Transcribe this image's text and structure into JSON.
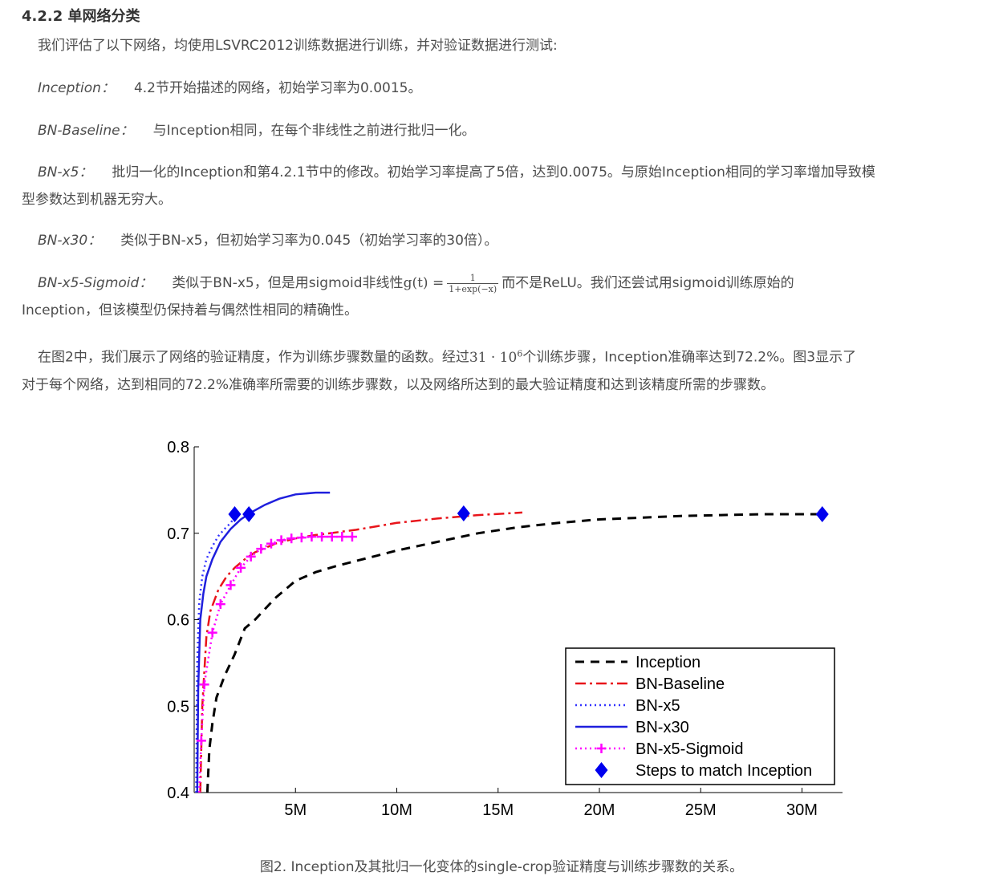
{
  "section": {
    "number": "4.2.2",
    "title": "单网络分类"
  },
  "intro": "我们评估了以下网络，均使用LSVRC2012训练数据进行训练，并对验证数据进行测试:",
  "items": [
    {
      "term": "Inception：",
      "desc": "4.2节开始描述的网络，初始学习率为0.0015。"
    },
    {
      "term": "BN-Baseline：",
      "desc": "与Inception相同，在每个非线性之前进行批归一化。"
    },
    {
      "term": "BN-x5：",
      "desc_a": "批归一化的Inception和第4.2.1节中的修改。初始学习率提高了5倍，达到0.0075。与原始Inception相同的学习率增加导致模",
      "desc_b": "型参数达到机器无穷大。"
    },
    {
      "term": "BN-x30：",
      "desc": "类似于BN-x5，但初始学习率为0.045（初始学习率的30倍）。"
    },
    {
      "term": "BN-x5-Sigmoid：",
      "desc_a": "类似于BN-x5，但是用sigmoid非线性",
      "formula_lhs": "g(t) =",
      "frac_num": "1",
      "frac_den": "1+exp(−x)",
      "desc_b": "而不是ReLU。我们还尝试用sigmoid训练原始的",
      "desc_c": "Inception，但该模型仍保持着与偶然性相同的精确性。"
    }
  ],
  "summary": {
    "a": "在图2中，我们展示了网络的验证精度，作为训练步骤数量的函数。经过",
    "math_base": "31 · 10",
    "math_exp": "6",
    "b": "个训练步骤，Inception准确率达到72.2%。图3显示了",
    "c": "对于每个网络，达到相同的72.2%准确率所需要的训练步骤数，以及网络所达到的最大验证精度和达到该精度所需的步骤数。"
  },
  "caption": "图2. Inception及其批归一化变体的single-crop验证精度与训练步骤数的关系。",
  "chart_data": {
    "type": "line",
    "title": "",
    "xlabel": "",
    "ylabel": "",
    "xlim": [
      0,
      32000000
    ],
    "ylim": [
      0.4,
      0.8
    ],
    "x_ticks": [
      5000000,
      10000000,
      15000000,
      20000000,
      25000000,
      30000000
    ],
    "x_tick_labels": [
      "5M",
      "10M",
      "15M",
      "20M",
      "25M",
      "30M"
    ],
    "y_ticks": [
      0.4,
      0.5,
      0.6,
      0.7,
      0.8
    ],
    "y_tick_labels": [
      "0.4",
      "0.5",
      "0.6",
      "0.7",
      "0.8"
    ],
    "legend_position": "bottom-right",
    "series": [
      {
        "name": "Inception",
        "color": "#000000",
        "style": "dashed",
        "x": [
          650000,
          750000,
          900000,
          1100000,
          1500000,
          2000000,
          2500000,
          3000000,
          4000000,
          5000000,
          6000000,
          7000000,
          8000000,
          9000000,
          10000000,
          12000000,
          14000000,
          16000000,
          18000000,
          20000000,
          22000000,
          24000000,
          26000000,
          28000000,
          30000000,
          31000000
        ],
        "y": [
          0.4,
          0.45,
          0.48,
          0.51,
          0.535,
          0.56,
          0.59,
          0.6,
          0.625,
          0.645,
          0.655,
          0.662,
          0.668,
          0.674,
          0.68,
          0.69,
          0.7,
          0.707,
          0.712,
          0.716,
          0.718,
          0.72,
          0.721,
          0.722,
          0.722,
          0.722
        ]
      },
      {
        "name": "BN-Baseline",
        "color": "#e8141a",
        "style": "dashdot",
        "x": [
          300000,
          400000,
          600000,
          800000,
          1200000,
          1600000,
          2000000,
          2500000,
          3000000,
          4000000,
          5000000,
          6000000,
          7000000,
          8000000,
          9000000,
          10000000,
          12000000,
          14000000,
          16200000
        ],
        "y": [
          0.4,
          0.5,
          0.58,
          0.61,
          0.635,
          0.65,
          0.66,
          0.67,
          0.678,
          0.688,
          0.694,
          0.698,
          0.701,
          0.704,
          0.708,
          0.712,
          0.717,
          0.721,
          0.724
        ]
      },
      {
        "name": "BN-x5",
        "color": "#3333ff",
        "style": "dotted",
        "x": [
          100000,
          150000,
          250000,
          400000,
          600000,
          900000,
          1200000,
          1500000,
          1800000,
          2100000
        ],
        "y": [
          0.4,
          0.55,
          0.62,
          0.65,
          0.67,
          0.685,
          0.697,
          0.705,
          0.712,
          0.722
        ]
      },
      {
        "name": "BN-x30",
        "color": "#1f1fdd",
        "style": "solid",
        "x": [
          150000,
          200000,
          300000,
          450000,
          600000,
          900000,
          1300000,
          1800000,
          2300000,
          2800000,
          3500000,
          4200000,
          5000000,
          6000000,
          6700000
        ],
        "y": [
          0.4,
          0.52,
          0.6,
          0.63,
          0.65,
          0.67,
          0.69,
          0.705,
          0.716,
          0.724,
          0.733,
          0.74,
          0.745,
          0.747,
          0.747
        ]
      },
      {
        "name": "BN-x5-Sigmoid",
        "color": "#ff00ff",
        "style": "dotted-plus",
        "x": [
          250000,
          350000,
          500000,
          900000,
          1300000,
          1800000,
          2300000,
          2800000,
          3300000,
          3800000,
          4300000,
          4800000,
          5300000,
          5800000,
          6300000,
          6800000,
          7300000,
          7800000
        ],
        "y": [
          0.4,
          0.46,
          0.525,
          0.585,
          0.618,
          0.64,
          0.66,
          0.673,
          0.682,
          0.688,
          0.692,
          0.694,
          0.695,
          0.696,
          0.696,
          0.696,
          0.696,
          0.696
        ]
      },
      {
        "name": "Steps to match Inception",
        "color": "#0000ee",
        "style": "diamond",
        "x": [
          2000000,
          2700000,
          13300000,
          31000000
        ],
        "y": [
          0.722,
          0.722,
          0.723,
          0.722
        ]
      }
    ]
  }
}
